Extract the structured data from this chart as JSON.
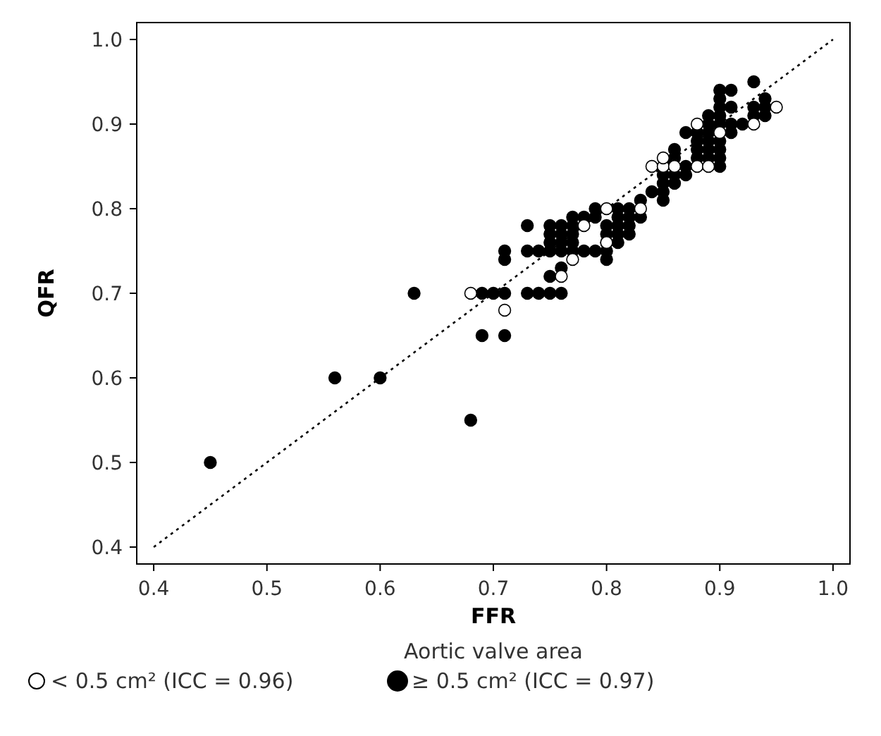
{
  "chart_data": {
    "type": "scatter",
    "xlabel": "FFR",
    "ylabel": "QFR",
    "legend_title": "Aortic valve area",
    "legend": "bottom",
    "marker": "circle",
    "grid": false,
    "xlim": [
      0.385,
      1.015
    ],
    "ylim": [
      0.38,
      1.02
    ],
    "xticks": [
      0.4,
      0.5,
      0.6,
      0.7,
      0.8,
      0.9,
      {
        "value": 1,
        "label": "1.0"
      }
    ],
    "yticks": [
      0.4,
      0.5,
      0.6,
      0.7,
      0.8,
      0.9,
      {
        "value": 1,
        "label": "1.0"
      }
    ],
    "series": [
      {
        "name": "< 0.5 cm² (ICC = 0.96)",
        "color": "#ffffff",
        "x": [
          0.68,
          0.71,
          0.76,
          0.77,
          0.78,
          0.8,
          0.8,
          0.83,
          0.84,
          0.85,
          0.85,
          0.86,
          0.88,
          0.89,
          0.88,
          0.9,
          0.93,
          0.95
        ],
        "values": [
          0.7,
          0.68,
          0.72,
          0.74,
          0.78,
          0.76,
          0.8,
          0.8,
          0.85,
          0.85,
          0.86,
          0.85,
          0.85,
          0.85,
          0.9,
          0.89,
          0.9,
          0.92
        ]
      },
      {
        "name": "≥ 0.5 cm² (ICC = 0.97)",
        "color": "#000000",
        "x": [
          0.45,
          0.56,
          0.6,
          0.63,
          0.69,
          0.7,
          0.71,
          0.69,
          0.71,
          0.68,
          0.71,
          0.71,
          0.73,
          0.74,
          0.75,
          0.76,
          0.73,
          0.74,
          0.73,
          0.75,
          0.75,
          0.75,
          0.75,
          0.75,
          0.76,
          0.76,
          0.76,
          0.76,
          0.76,
          0.77,
          0.77,
          0.77,
          0.77,
          0.77,
          0.78,
          0.78,
          0.79,
          0.79,
          0.79,
          0.8,
          0.8,
          0.8,
          0.8,
          0.8,
          0.81,
          0.81,
          0.81,
          0.81,
          0.81,
          0.82,
          0.82,
          0.82,
          0.82,
          0.83,
          0.83,
          0.84,
          0.85,
          0.85,
          0.85,
          0.85,
          0.86,
          0.86,
          0.86,
          0.86,
          0.87,
          0.87,
          0.87,
          0.88,
          0.88,
          0.88,
          0.88,
          0.89,
          0.89,
          0.89,
          0.89,
          0.89,
          0.89,
          0.9,
          0.9,
          0.9,
          0.9,
          0.9,
          0.9,
          0.9,
          0.9,
          0.9,
          0.91,
          0.91,
          0.91,
          0.91,
          0.92,
          0.93,
          0.93,
          0.93,
          0.94,
          0.94,
          0.94
        ],
        "values": [
          0.5,
          0.6,
          0.6,
          0.7,
          0.7,
          0.7,
          0.7,
          0.65,
          0.65,
          0.55,
          0.75,
          0.74,
          0.7,
          0.7,
          0.7,
          0.7,
          0.75,
          0.75,
          0.78,
          0.78,
          0.77,
          0.76,
          0.75,
          0.72,
          0.78,
          0.77,
          0.76,
          0.75,
          0.73,
          0.79,
          0.78,
          0.77,
          0.76,
          0.75,
          0.79,
          0.75,
          0.8,
          0.79,
          0.75,
          0.78,
          0.77,
          0.76,
          0.75,
          0.74,
          0.8,
          0.79,
          0.78,
          0.77,
          0.76,
          0.8,
          0.79,
          0.78,
          0.77,
          0.81,
          0.79,
          0.82,
          0.84,
          0.83,
          0.82,
          0.81,
          0.87,
          0.86,
          0.84,
          0.83,
          0.89,
          0.85,
          0.84,
          0.89,
          0.88,
          0.87,
          0.86,
          0.91,
          0.9,
          0.89,
          0.88,
          0.87,
          0.86,
          0.94,
          0.93,
          0.92,
          0.91,
          0.9,
          0.88,
          0.87,
          0.86,
          0.85,
          0.94,
          0.92,
          0.9,
          0.89,
          0.9,
          0.95,
          0.92,
          0.91,
          0.93,
          0.92,
          0.91
        ]
      },
      {
        "type": "line",
        "color": "#000000",
        "line_style": "dotted",
        "marker": "none",
        "x": [
          0.4,
          1.0
        ],
        "values": [
          0.4,
          1.0
        ]
      }
    ]
  }
}
